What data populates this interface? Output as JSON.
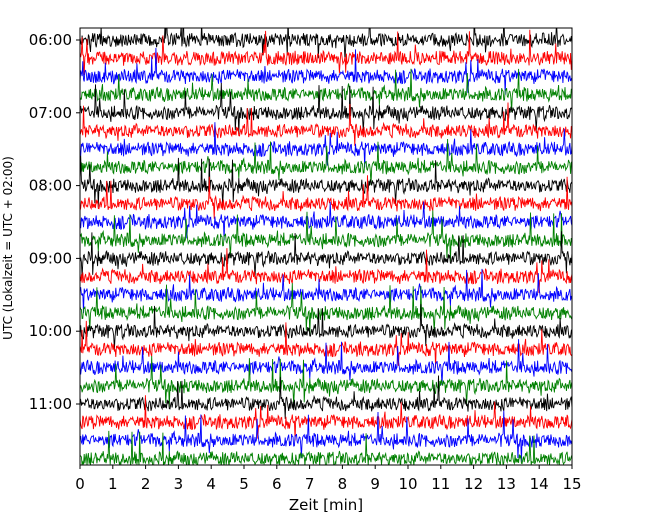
{
  "chart_data": {
    "type": "line",
    "title": "",
    "xlabel": "Zeit  [min]",
    "ylabel": "UTC (Lokalzeit = UTC + 02:00)",
    "xlim": [
      0,
      15
    ],
    "x_ticks": [
      "0",
      "1",
      "2",
      "3",
      "4",
      "5",
      "6",
      "7",
      "8",
      "9",
      "10",
      "11",
      "12",
      "13",
      "14",
      "15"
    ],
    "y_ticks": [
      "06:00",
      "07:00",
      "08:00",
      "09:00",
      "10:00",
      "11:00"
    ],
    "trace_start_utc": "06:00",
    "trace_interval_min": 15,
    "trace_count": 24,
    "trace_colors": [
      "#000000",
      "#ff0000",
      "#0000ff",
      "#008000"
    ],
    "grid": false,
    "legend": "none"
  }
}
